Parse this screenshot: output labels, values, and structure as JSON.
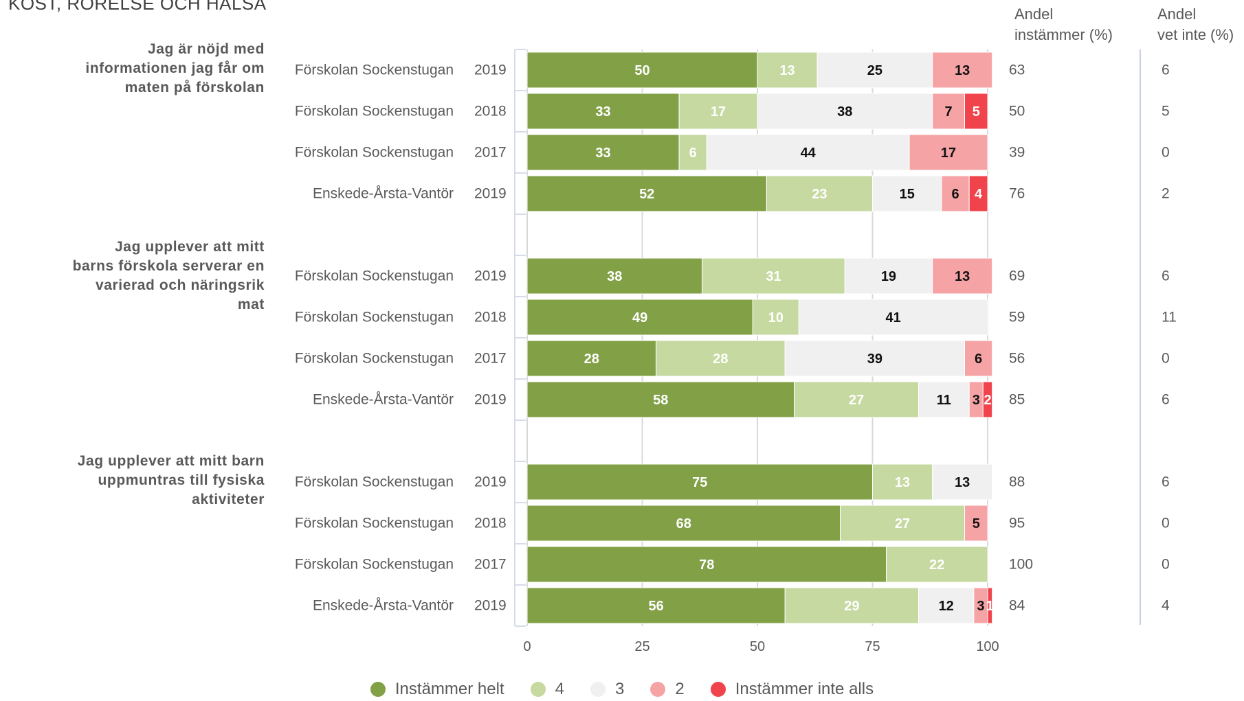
{
  "page_title": "KOST, RÖRELSE OCH HÄLSA",
  "column_headers": {
    "agree": "Andel\ninstämmer (%)",
    "dontknow": "Andel\nvet inte (%)"
  },
  "colors": {
    "Instämmer helt": "#82a046",
    "4": "#c5d9a0",
    "3": "#f0f0f0",
    "2": "#f6a3a6",
    "Instämmer inte alls": "#f0434b"
  },
  "legend": [
    "Instämmer helt",
    "4",
    "3",
    "2",
    "Instämmer inte alls"
  ],
  "chart_data": {
    "type": "bar",
    "orientation": "horizontal-stacked",
    "xlim": [
      0,
      100
    ],
    "x_ticks": [
      0,
      25,
      50,
      75,
      100
    ],
    "series_names": [
      "Instämmer helt",
      "4",
      "3",
      "2",
      "Instämmer inte alls"
    ],
    "grid": true,
    "legend_position": "bottom",
    "groups": [
      {
        "question": "Jag är nöjd med informationen jag får om maten på förskolan",
        "rows": [
          {
            "unit": "Förskolan Sockenstugan",
            "year": "2019",
            "values": [
              50,
              13,
              25,
              13,
              0
            ],
            "agree": "63",
            "dontknow": "6"
          },
          {
            "unit": "Förskolan Sockenstugan",
            "year": "2018",
            "values": [
              33,
              17,
              38,
              7,
              5
            ],
            "agree": "50",
            "dontknow": "5"
          },
          {
            "unit": "Förskolan Sockenstugan",
            "year": "2017",
            "values": [
              33,
              6,
              44,
              17,
              0
            ],
            "agree": "39",
            "dontknow": "0"
          },
          {
            "unit": "Enskede-Årsta-Vantör",
            "year": "2019",
            "values": [
              52,
              23,
              15,
              6,
              4
            ],
            "agree": "76",
            "dontknow": "2"
          }
        ]
      },
      {
        "question": "Jag upplever att mitt barns förskola serverar en varierad och näringsrik mat",
        "rows": [
          {
            "unit": "Förskolan Sockenstugan",
            "year": "2019",
            "values": [
              38,
              31,
              19,
              13,
              0
            ],
            "agree": "69",
            "dontknow": "6"
          },
          {
            "unit": "Förskolan Sockenstugan",
            "year": "2018",
            "values": [
              49,
              10,
              41,
              0,
              0
            ],
            "agree": "59",
            "dontknow": "11"
          },
          {
            "unit": "Förskolan Sockenstugan",
            "year": "2017",
            "values": [
              28,
              28,
              39,
              6,
              0
            ],
            "agree": "56",
            "dontknow": "0"
          },
          {
            "unit": "Enskede-Årsta-Vantör",
            "year": "2019",
            "values": [
              58,
              27,
              11,
              3,
              2
            ],
            "agree": "85",
            "dontknow": "6"
          }
        ]
      },
      {
        "question": "Jag upplever att mitt barn uppmuntras till fysiska aktiviteter",
        "rows": [
          {
            "unit": "Förskolan Sockenstugan",
            "year": "2019",
            "values": [
              75,
              13,
              13,
              0,
              0
            ],
            "agree": "88",
            "dontknow": "6"
          },
          {
            "unit": "Förskolan Sockenstugan",
            "year": "2018",
            "values": [
              68,
              27,
              0,
              5,
              0
            ],
            "agree": "95",
            "dontknow": "0"
          },
          {
            "unit": "Förskolan Sockenstugan",
            "year": "2017",
            "values": [
              78,
              22,
              0,
              0,
              0
            ],
            "agree": "100",
            "dontknow": "0"
          },
          {
            "unit": "Enskede-Årsta-Vantör",
            "year": "2019",
            "values": [
              56,
              29,
              12,
              3,
              1
            ],
            "agree": "84",
            "dontknow": "4"
          }
        ]
      }
    ]
  }
}
